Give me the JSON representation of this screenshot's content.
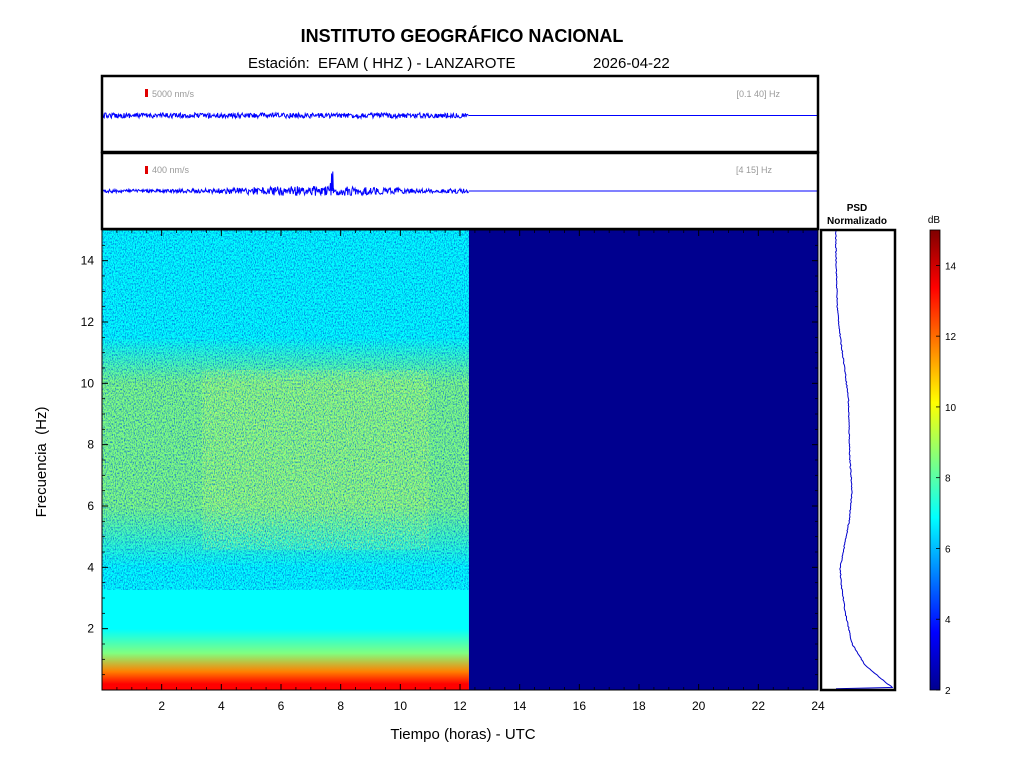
{
  "header": {
    "title": "INSTITUTO GEOGRÁFICO NACIONAL",
    "station": "Estación:  EFAM ( HHZ ) - LANZAROTE",
    "date": "2026-04-22"
  },
  "chart_data": [
    {
      "type": "line",
      "panel": "seismogram-broadband",
      "scale_label": "5000 nm/s",
      "band_label": "[0.1 40] Hz",
      "x_range": [
        0,
        24
      ],
      "data_until_hours": 12.3,
      "trace_color": "#0000ff",
      "scale_bar_color": "#e00000"
    },
    {
      "type": "line",
      "panel": "seismogram-filtered",
      "scale_label": "400 nm/s",
      "band_label": "[4 15] Hz",
      "x_range": [
        0,
        24
      ],
      "data_until_hours": 12.3,
      "peak_near_hours": 7.7,
      "trace_color": "#0000ff",
      "scale_bar_color": "#e00000"
    },
    {
      "type": "heatmap",
      "panel": "spectrogram",
      "xlabel": "Tiempo (horas) - UTC",
      "ylabel": "Frecuencia  (Hz)",
      "xlim": [
        0,
        24
      ],
      "ylim": [
        0,
        15
      ],
      "x_ticks": [
        "2",
        "4",
        "6",
        "8",
        "10",
        "12",
        "14",
        "16",
        "18",
        "20",
        "22",
        "24"
      ],
      "y_ticks": [
        "2",
        "4",
        "6",
        "8",
        "10",
        "12",
        "14"
      ],
      "data_until_hours": 12.3,
      "empty_fill_color": "#00008f",
      "approx_db_by_freq": [
        {
          "hz": 0.2,
          "db": 14.0
        },
        {
          "hz": 0.6,
          "db": 11.5
        },
        {
          "hz": 1.2,
          "db": 9.0
        },
        {
          "hz": 2,
          "db": 7.5
        },
        {
          "hz": 4,
          "db": 6.8
        },
        {
          "hz": 6,
          "db": 9.0
        },
        {
          "hz": 8,
          "db": 8.8
        },
        {
          "hz": 10,
          "db": 8.2
        },
        {
          "hz": 11.5,
          "db": 7.2
        },
        {
          "hz": 13,
          "db": 6.5
        },
        {
          "hz": 14.8,
          "db": 6.7
        }
      ]
    },
    {
      "type": "line",
      "panel": "psd",
      "title_line1": "PSD",
      "title_line2": "Normalizado",
      "ylim": [
        0,
        15
      ],
      "trace_color": "#0000cc",
      "points": [
        {
          "hz": 0.05,
          "v": 0.98
        },
        {
          "hz": 0.3,
          "v": 0.85
        },
        {
          "hz": 0.8,
          "v": 0.6
        },
        {
          "hz": 1.5,
          "v": 0.42
        },
        {
          "hz": 2.5,
          "v": 0.33
        },
        {
          "hz": 3.5,
          "v": 0.27
        },
        {
          "hz": 4.0,
          "v": 0.26
        },
        {
          "hz": 4.5,
          "v": 0.3
        },
        {
          "hz": 5.5,
          "v": 0.38
        },
        {
          "hz": 6.5,
          "v": 0.42
        },
        {
          "hz": 7.5,
          "v": 0.39
        },
        {
          "hz": 8.5,
          "v": 0.38
        },
        {
          "hz": 9.5,
          "v": 0.37
        },
        {
          "hz": 10.5,
          "v": 0.32
        },
        {
          "hz": 11.5,
          "v": 0.26
        },
        {
          "hz": 12.5,
          "v": 0.22
        },
        {
          "hz": 13.5,
          "v": 0.21
        },
        {
          "hz": 14.5,
          "v": 0.2
        },
        {
          "hz": 15,
          "v": 0.2
        }
      ]
    },
    {
      "type": "heatmap",
      "panel": "colorbar",
      "label": "dB",
      "range": [
        2,
        15
      ],
      "ticks": [
        "2",
        "4",
        "6",
        "8",
        "10",
        "12",
        "14"
      ],
      "colormap": [
        "#00008f",
        "#0000ff",
        "#0080ff",
        "#00ffff",
        "#80ff80",
        "#ffff00",
        "#ff8000",
        "#ff0000",
        "#800000"
      ]
    }
  ]
}
